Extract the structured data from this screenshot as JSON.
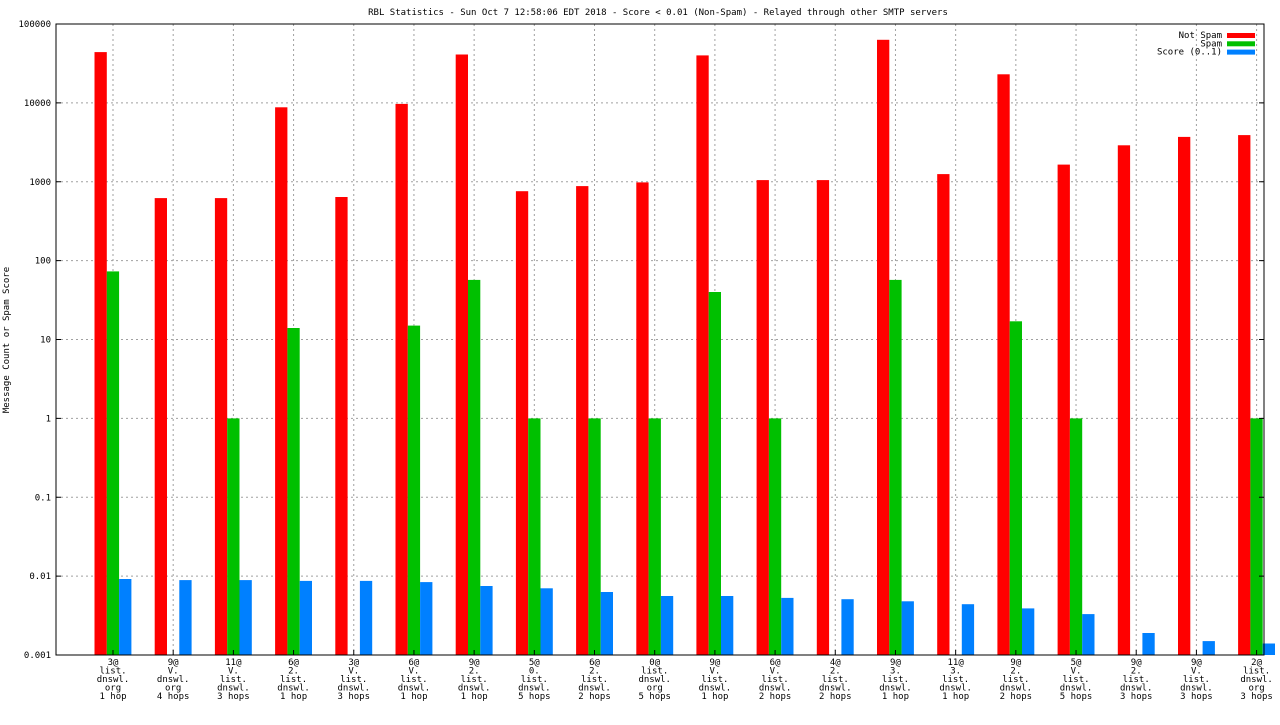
{
  "chart_data": {
    "type": "bar",
    "title": "RBL Statistics - Sun Oct  7 12:58:06 EDT 2018 - Score < 0.01 (Non-Spam) - Relayed through other SMTP servers",
    "xlabel": "",
    "ylabel": "Message Count or Spam Score",
    "yscale": "log",
    "ylim": [
      0.001,
      100000
    ],
    "yticks": [
      "0.001",
      "0.01",
      "0.1",
      "1",
      "10",
      "100",
      "1000",
      "10000",
      "100000"
    ],
    "grid": true,
    "legend_position": "top-right",
    "categories": [
      [
        "3@",
        "list.",
        "dnswl.",
        "org",
        "1 hop"
      ],
      [
        "9@",
        "V.",
        "dnswl.",
        "org",
        "4 hops"
      ],
      [
        "11@",
        "V.",
        "list.",
        "dnswl.",
        "3 hops"
      ],
      [
        "6@",
        "2.",
        "list.",
        "dnswl.",
        "1 hop"
      ],
      [
        "3@",
        "V.",
        "list.",
        "dnswl.",
        "3 hops"
      ],
      [
        "6@",
        "V.",
        "list.",
        "dnswl.",
        "1 hop"
      ],
      [
        "9@",
        "2.",
        "list.",
        "dnswl.",
        "1 hop"
      ],
      [
        "5@",
        "0.",
        "list.",
        "dnswl.",
        "5 hops"
      ],
      [
        "6@",
        "2.",
        "list.",
        "dnswl.",
        "2 hops"
      ],
      [
        "0@",
        "list.",
        "dnswl.",
        "org",
        "5 hops"
      ],
      [
        "9@",
        "V.",
        "list.",
        "dnswl.",
        "1 hop"
      ],
      [
        "6@",
        "V.",
        "list.",
        "dnswl.",
        "2 hops"
      ],
      [
        "4@",
        "2.",
        "list.",
        "dnswl.",
        "2 hops"
      ],
      [
        "9@",
        "3.",
        "list.",
        "dnswl.",
        "1 hop"
      ],
      [
        "11@",
        "3.",
        "list.",
        "dnswl.",
        "1 hop"
      ],
      [
        "9@",
        "2.",
        "list.",
        "dnswl.",
        "2 hops"
      ],
      [
        "5@",
        "V.",
        "list.",
        "dnswl.",
        "5 hops"
      ],
      [
        "9@",
        "2.",
        "list.",
        "dnswl.",
        "3 hops"
      ],
      [
        "9@",
        "V.",
        "list.",
        "dnswl.",
        "3 hops"
      ],
      [
        "2@",
        "list.",
        "dnswl.",
        "org",
        "3 hops"
      ]
    ],
    "series": [
      {
        "name": "Not Spam",
        "color": "#ff0000",
        "values": [
          44000,
          620,
          620,
          8800,
          640,
          9700,
          41000,
          760,
          880,
          980,
          40000,
          1050,
          1050,
          63000,
          1250,
          23000,
          1650,
          2900,
          3700,
          3900
        ]
      },
      {
        "name": "Spam",
        "color": "#00c000",
        "values": [
          73,
          null,
          1,
          14,
          null,
          15,
          57,
          1,
          1,
          1,
          40,
          1,
          null,
          57,
          null,
          17,
          1,
          null,
          null,
          1
        ]
      },
      {
        "name": "Score (0..1)",
        "color": "#0080ff",
        "values": [
          0.0092,
          0.0089,
          0.0089,
          0.0087,
          0.0087,
          0.0084,
          0.0075,
          0.007,
          0.0063,
          0.0056,
          0.0056,
          0.0053,
          0.0051,
          0.0048,
          0.0044,
          0.0039,
          0.0033,
          0.0019,
          0.0015,
          0.0014
        ]
      }
    ]
  }
}
